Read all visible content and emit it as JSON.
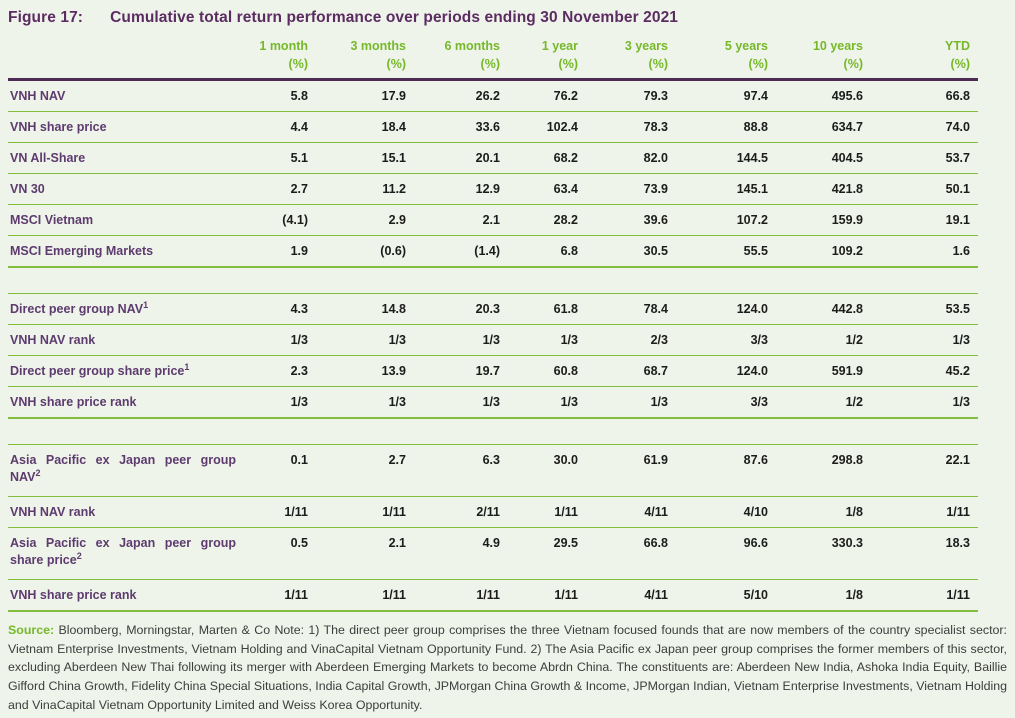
{
  "figure": {
    "label": "Figure 17:",
    "title": "Cumulative total return performance over periods ending 30 November 2021"
  },
  "table": {
    "columns": [
      {
        "period": "1 month",
        "unit": "(%)"
      },
      {
        "period": "3 months",
        "unit": "(%)"
      },
      {
        "period": "6 months",
        "unit": "(%)"
      },
      {
        "period": "1 year",
        "unit": "(%)"
      },
      {
        "period": "3 years",
        "unit": "(%)"
      },
      {
        "period": "5 years",
        "unit": "(%)"
      },
      {
        "period": "10 years",
        "unit": "(%)"
      },
      {
        "period": "YTD",
        "unit": "(%)"
      }
    ],
    "rows": [
      {
        "type": "data",
        "label": "VNH NAV",
        "values": [
          "5.8",
          "17.9",
          "26.2",
          "76.2",
          "79.3",
          "97.4",
          "495.6",
          "66.8"
        ]
      },
      {
        "type": "data",
        "label": "VNH share price",
        "values": [
          "4.4",
          "18.4",
          "33.6",
          "102.4",
          "78.3",
          "88.8",
          "634.7",
          "74.0"
        ]
      },
      {
        "type": "data",
        "label": "VN All-Share",
        "values": [
          "5.1",
          "15.1",
          "20.1",
          "68.2",
          "82.0",
          "144.5",
          "404.5",
          "53.7"
        ]
      },
      {
        "type": "data",
        "label": "VN 30",
        "values": [
          "2.7",
          "11.2",
          "12.9",
          "63.4",
          "73.9",
          "145.1",
          "421.8",
          "50.1"
        ]
      },
      {
        "type": "data",
        "label": "MSCI Vietnam",
        "values": [
          "(4.1)",
          "2.9",
          "2.1",
          "28.2",
          "39.6",
          "107.2",
          "159.9",
          "19.1"
        ]
      },
      {
        "type": "data",
        "label": "MSCI Emerging Markets",
        "values": [
          "1.9",
          "(0.6)",
          "(1.4)",
          "6.8",
          "30.5",
          "55.5",
          "109.2",
          "1.6"
        ],
        "section_end": true
      },
      {
        "type": "spacer"
      },
      {
        "type": "data",
        "label": "Direct peer group NAV¹",
        "values": [
          "4.3",
          "14.8",
          "20.3",
          "61.8",
          "78.4",
          "124.0",
          "442.8",
          "53.5"
        ]
      },
      {
        "type": "data",
        "label": "VNH NAV rank",
        "values": [
          "1/3",
          "1/3",
          "1/3",
          "1/3",
          "2/3",
          "3/3",
          "1/2",
          "1/3"
        ]
      },
      {
        "type": "data",
        "label": "Direct peer group share price¹",
        "values": [
          "2.3",
          "13.9",
          "19.7",
          "60.8",
          "68.7",
          "124.0",
          "591.9",
          "45.2"
        ]
      },
      {
        "type": "data",
        "label": "VNH share price rank",
        "values": [
          "1/3",
          "1/3",
          "1/3",
          "1/3",
          "1/3",
          "3/3",
          "1/2",
          "1/3"
        ],
        "section_end": true
      },
      {
        "type": "spacer"
      },
      {
        "type": "data",
        "label": "Asia Pacific ex Japan peer group NAV²",
        "values": [
          "0.1",
          "2.7",
          "6.3",
          "30.0",
          "61.9",
          "87.6",
          "298.8",
          "22.1"
        ],
        "tall": true
      },
      {
        "type": "data",
        "label": "VNH NAV rank",
        "values": [
          "1/11",
          "1/11",
          "2/11",
          "1/11",
          "4/11",
          "4/10",
          "1/8",
          "1/11"
        ]
      },
      {
        "type": "data",
        "label": "Asia Pacific ex Japan peer group share price²",
        "values": [
          "0.5",
          "2.1",
          "4.9",
          "29.5",
          "66.8",
          "96.6",
          "330.3",
          "18.3"
        ],
        "tall": true
      },
      {
        "type": "data",
        "label": "VNH share price rank",
        "values": [
          "1/11",
          "1/11",
          "1/11",
          "1/11",
          "4/11",
          "5/10",
          "1/8",
          "1/11"
        ],
        "section_end": true
      }
    ]
  },
  "source": {
    "label": "Source:",
    "text": " Bloomberg, Morningstar, Marten & Co Note: 1) The direct peer group comprises the three Vietnam focused founds that are now members of the country specialist sector: Vietnam Enterprise Investments, Vietnam Holding and VinaCapital Vietnam Opportunity Fund. 2) The Asia Pacific ex Japan peer group comprises the former members of this sector, excluding Aberdeen New Thai following its merger with Aberdeen Emerging Markets to become Abrdn China. The constituents are: Aberdeen New India, Ashoka India Equity, Baillie Gifford China Growth, Fidelity China Special Situations, India Capital Growth, JPMorgan China Growth & Income, JPMorgan Indian, Vietnam Enterprise Investments, Vietnam Holding and VinaCapital Vietnam Opportunity Limited and Weiss Korea Opportunity."
  },
  "colors": {
    "title_purple": "#5b2c62",
    "label_purple": "#5d3b6f",
    "green": "#76b82a",
    "line_green": "#82bd40",
    "header_rule_purple": "#4e2a56",
    "value_black": "#1c1c1c",
    "body_text": "#3d3d3d",
    "page_bg": "#eef4e9"
  }
}
